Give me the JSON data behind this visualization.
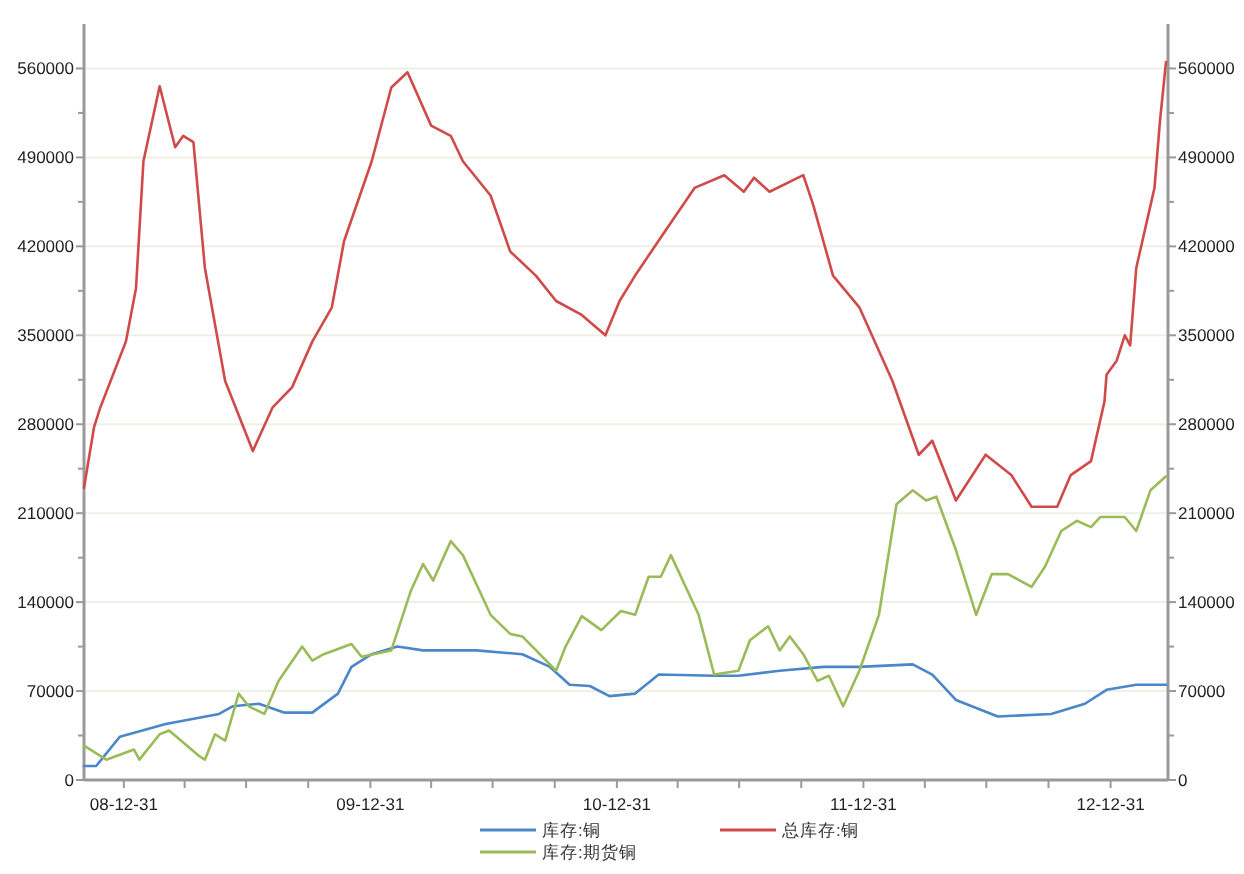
{
  "chart_data": {
    "type": "line",
    "xlim": [
      "2008-11-02",
      "2013-03-26"
    ],
    "xticks": [
      {
        "value": "2008-12-31",
        "label": "08-12-31"
      },
      {
        "value": "2009-03-31",
        "label": null
      },
      {
        "value": "2009-06-30",
        "label": null
      },
      {
        "value": "2009-09-30",
        "label": null
      },
      {
        "value": "2009-12-31",
        "label": "09-12-31"
      },
      {
        "value": "2010-03-31",
        "label": null
      },
      {
        "value": "2010-06-30",
        "label": null
      },
      {
        "value": "2010-09-30",
        "label": null
      },
      {
        "value": "2010-12-31",
        "label": "10-12-31"
      },
      {
        "value": "2011-03-31",
        "label": null
      },
      {
        "value": "2011-06-30",
        "label": null
      },
      {
        "value": "2011-09-30",
        "label": null
      },
      {
        "value": "2011-12-31",
        "label": "11-12-31"
      },
      {
        "value": "2012-03-31",
        "label": null
      },
      {
        "value": "2012-06-30",
        "label": null
      },
      {
        "value": "2012-09-30",
        "label": null
      },
      {
        "value": "2012-12-31",
        "label": "12-12-31"
      }
    ],
    "ylim": [
      0,
      595000
    ],
    "yticks": [
      0,
      {
        "value": 35000,
        "label": null
      },
      70000,
      {
        "value": 105000,
        "label": null
      },
      140000,
      {
        "value": 175000,
        "label": null
      },
      210000,
      {
        "value": 245000,
        "label": null
      },
      280000,
      {
        "value": 315000,
        "label": null
      },
      350000,
      {
        "value": 385000,
        "label": null
      },
      420000,
      {
        "value": 455000,
        "label": null
      },
      490000,
      {
        "value": 525000,
        "label": null
      },
      560000
    ],
    "y2lim": [
      0,
      595000
    ],
    "y2ticks": [
      0,
      {
        "value": 35000,
        "label": null
      },
      70000,
      {
        "value": 105000,
        "label": null
      },
      140000,
      {
        "value": 175000,
        "label": null
      },
      210000,
      {
        "value": 245000,
        "label": null
      },
      280000,
      {
        "value": 315000,
        "label": null
      },
      350000,
      {
        "value": 385000,
        "label": null
      },
      420000,
      {
        "value": 455000,
        "label": null
      },
      490000,
      {
        "value": 525000,
        "label": null
      },
      560000
    ],
    "grid": "y",
    "legend": "bottom",
    "marker": "none",
    "line_style": "solid",
    "series": [
      {
        "name": "库存:铜",
        "color": "#4a86c8",
        "x": [
          "2008-11-02",
          "2008-11-20",
          "2008-12-25",
          "2009-03-03",
          "2009-05-21",
          "2009-06-10",
          "2009-07-19",
          "2009-08-26",
          "2009-10-06",
          "2009-11-13",
          "2009-12-03",
          "2010-01-02",
          "2010-02-09",
          "2010-03-19",
          "2010-06-06",
          "2010-08-13",
          "2010-09-23",
          "2010-10-22",
          "2010-11-21",
          "2010-12-20",
          "2011-01-27",
          "2011-03-03",
          "2011-05-24",
          "2011-06-29",
          "2011-08-29",
          "2011-11-02",
          "2011-12-25",
          "2012-03-13",
          "2012-04-11",
          "2012-05-16",
          "2012-07-17",
          "2012-10-04",
          "2012-11-23",
          "2012-12-25",
          "2013-02-07",
          "2013-03-23"
        ],
        "values": [
          11000,
          11000,
          34000,
          44000,
          52000,
          58000,
          60000,
          53000,
          53000,
          68000,
          89000,
          99000,
          105000,
          102000,
          102000,
          99000,
          89000,
          75000,
          74000,
          66000,
          68000,
          83000,
          82000,
          82000,
          86000,
          89000,
          89000,
          91000,
          83000,
          63000,
          50000,
          52000,
          60000,
          71000,
          75000,
          75000
        ]
      },
      {
        "name": "总库存:铜",
        "color": "#d04a4a",
        "x": [
          "2008-11-02",
          "2008-11-17",
          "2008-11-26",
          "2009-01-03",
          "2009-01-18",
          "2009-01-29",
          "2009-02-22",
          "2009-03-17",
          "2009-03-29",
          "2009-04-13",
          "2009-04-30",
          "2009-05-30",
          "2009-07-10",
          "2009-08-08",
          "2009-09-06",
          "2009-10-06",
          "2009-11-04",
          "2009-11-22",
          "2010-01-02",
          "2010-01-31",
          "2010-02-24",
          "2010-03-31",
          "2010-04-29",
          "2010-05-17",
          "2010-06-27",
          "2010-07-26",
          "2010-09-02",
          "2010-10-02",
          "2010-11-09",
          "2010-12-14",
          "2011-01-04",
          "2011-01-27",
          "2011-03-06",
          "2011-04-25",
          "2011-06-08",
          "2011-07-07",
          "2011-07-22",
          "2011-08-14",
          "2011-10-03",
          "2011-10-18",
          "2011-11-16",
          "2011-12-25",
          "2012-02-12",
          "2012-03-22",
          "2012-04-11",
          "2012-05-16",
          "2012-06-29",
          "2012-08-06",
          "2012-09-05",
          "2012-10-13",
          "2012-11-02",
          "2012-12-02",
          "2012-12-22",
          "2012-12-25",
          "2013-01-09",
          "2013-01-21",
          "2013-01-29",
          "2013-02-07",
          "2013-03-06",
          "2013-03-14",
          "2013-03-23"
        ],
        "values": [
          230000,
          278000,
          293000,
          345000,
          387000,
          487000,
          546000,
          498000,
          507000,
          502000,
          403000,
          314000,
          259000,
          293000,
          309000,
          345000,
          372000,
          424000,
          487000,
          545000,
          557000,
          515000,
          507000,
          487000,
          460000,
          416000,
          397000,
          377000,
          366000,
          350000,
          377000,
          397000,
          427000,
          466000,
          476000,
          463000,
          474000,
          463000,
          476000,
          452000,
          397000,
          372000,
          314000,
          256000,
          267000,
          220000,
          256000,
          240000,
          215000,
          215000,
          240000,
          251000,
          298000,
          319000,
          330000,
          350000,
          342000,
          403000,
          466000,
          518000,
          565000
        ]
      },
      {
        "name": "库存:期货铜",
        "color": "#9bbb59",
        "x": [
          "2008-11-02",
          "2008-12-05",
          "2009-01-15",
          "2009-01-23",
          "2009-02-22",
          "2009-03-08",
          "2009-04-21",
          "2009-04-30",
          "2009-05-15",
          "2009-05-30",
          "2009-06-19",
          "2009-07-04",
          "2009-07-27",
          "2009-08-17",
          "2009-09-21",
          "2009-10-06",
          "2009-10-23",
          "2009-12-03",
          "2009-12-18",
          "2010-01-31",
          "2010-03-01",
          "2010-03-19",
          "2010-04-03",
          "2010-04-29",
          "2010-05-17",
          "2010-06-27",
          "2010-07-26",
          "2010-08-13",
          "2010-10-02",
          "2010-10-16",
          "2010-11-09",
          "2010-12-08",
          "2011-01-06",
          "2011-01-27",
          "2011-02-16",
          "2011-03-06",
          "2011-03-21",
          "2011-05-01",
          "2011-05-24",
          "2011-06-29",
          "2011-07-16",
          "2011-08-12",
          "2011-08-29",
          "2011-09-13",
          "2011-10-03",
          "2011-10-24",
          "2011-11-10",
          "2011-12-01",
          "2011-12-25",
          "2012-01-23",
          "2012-02-18",
          "2012-03-13",
          "2012-04-02",
          "2012-04-17",
          "2012-05-16",
          "2012-06-15",
          "2012-07-08",
          "2012-08-01",
          "2012-09-05",
          "2012-09-25",
          "2012-10-19",
          "2012-11-11",
          "2012-12-02",
          "2012-12-16",
          "2013-01-21",
          "2013-02-07",
          "2013-02-28",
          "2013-03-23"
        ],
        "values": [
          27000,
          16000,
          24000,
          16000,
          36000,
          39000,
          19000,
          16000,
          36000,
          31000,
          68000,
          58000,
          52000,
          78000,
          105000,
          94000,
          99000,
          107000,
          97000,
          102000,
          149000,
          170000,
          157000,
          188000,
          177000,
          130000,
          115000,
          113000,
          86000,
          105000,
          129000,
          118000,
          133000,
          130000,
          160000,
          160000,
          177000,
          130000,
          83000,
          86000,
          110000,
          121000,
          102000,
          113000,
          99000,
          78000,
          82000,
          58000,
          86000,
          130000,
          217000,
          228000,
          220000,
          223000,
          181000,
          130000,
          162000,
          162000,
          152000,
          168000,
          196000,
          204000,
          199000,
          207000,
          207000,
          196000,
          228000,
          239000
        ]
      }
    ]
  }
}
